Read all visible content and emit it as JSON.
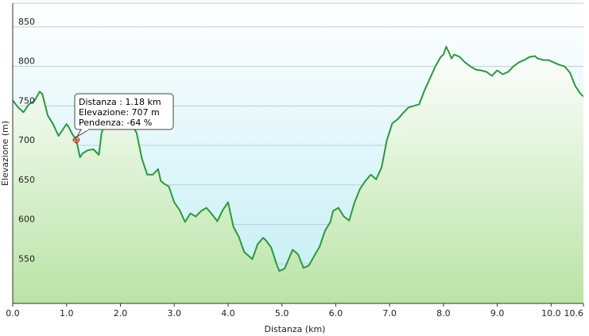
{
  "chart_data": {
    "type": "area",
    "title": "",
    "xlabel": "Distanza  (km)",
    "ylabel": "Elevazione (m)",
    "xlim": [
      0,
      10.6
    ],
    "ylim": [
      500,
      880
    ],
    "x_ticks": [
      0.0,
      1.0,
      2.0,
      3.0,
      4.0,
      5.0,
      6.0,
      7.0,
      8.0,
      9.0,
      10.0,
      10.6
    ],
    "x_tick_labels": [
      "0.0",
      "1.0",
      "2.0",
      "3.0",
      "4.0",
      "5.0",
      "6.0",
      "7.0",
      "8.0",
      "9.0",
      "10.0",
      "10.6"
    ],
    "y_ticks": [
      550,
      600,
      650,
      700,
      750,
      800,
      850
    ],
    "y_tick_labels": [
      "550",
      "600",
      "650",
      "700",
      "750",
      "800",
      "850"
    ],
    "grid": "horizontal",
    "colors": {
      "line": "#2a9a3c",
      "fill_top": "#ffffff",
      "fill_bottom": "#b9e3a0",
      "bg_top": "#ffffff",
      "bg_bottom": "#c2eef5",
      "grid": "#b9cfd8",
      "marker": "#d2302a"
    },
    "x": [
      0.0,
      0.1,
      0.2,
      0.3,
      0.4,
      0.5,
      0.55,
      0.65,
      0.75,
      0.85,
      0.9,
      1.0,
      1.05,
      1.1,
      1.18,
      1.25,
      1.3,
      1.4,
      1.5,
      1.6,
      1.65,
      1.75,
      1.85,
      1.9,
      2.0,
      2.1,
      2.15,
      2.25,
      2.3,
      2.4,
      2.5,
      2.6,
      2.7,
      2.75,
      2.8,
      2.9,
      3.0,
      3.1,
      3.2,
      3.3,
      3.4,
      3.5,
      3.6,
      3.7,
      3.8,
      3.9,
      4.0,
      4.1,
      4.2,
      4.3,
      4.35,
      4.45,
      4.55,
      4.65,
      4.7,
      4.8,
      4.9,
      4.95,
      5.05,
      5.15,
      5.2,
      5.3,
      5.4,
      5.5,
      5.6,
      5.7,
      5.8,
      5.9,
      5.95,
      6.05,
      6.15,
      6.25,
      6.35,
      6.45,
      6.55,
      6.65,
      6.75,
      6.85,
      6.95,
      7.05,
      7.15,
      7.25,
      7.35,
      7.45,
      7.55,
      7.65,
      7.75,
      7.85,
      7.95,
      8.0,
      8.05,
      8.1,
      8.15,
      8.2,
      8.3,
      8.4,
      8.5,
      8.6,
      8.7,
      8.8,
      8.9,
      9.0,
      9.1,
      9.2,
      9.3,
      9.4,
      9.5,
      9.6,
      9.7,
      9.75,
      9.85,
      9.95,
      10.05,
      10.15,
      10.25,
      10.35,
      10.45,
      10.55,
      10.6
    ],
    "y": [
      757,
      748,
      742,
      752,
      756,
      768,
      765,
      738,
      727,
      712,
      717,
      727,
      722,
      715,
      707,
      685,
      690,
      694,
      695,
      688,
      716,
      733,
      738,
      745,
      750,
      734,
      730,
      722,
      716,
      683,
      663,
      663,
      670,
      655,
      652,
      648,
      628,
      618,
      603,
      614,
      610,
      617,
      621,
      613,
      604,
      618,
      628,
      597,
      584,
      565,
      562,
      556,
      575,
      583,
      580,
      571,
      550,
      541,
      544,
      560,
      568,
      562,
      545,
      548,
      560,
      572,
      592,
      603,
      617,
      621,
      610,
      605,
      628,
      645,
      655,
      663,
      657,
      672,
      707,
      728,
      733,
      741,
      748,
      750,
      752,
      770,
      785,
      800,
      812,
      815,
      825,
      818,
      810,
      815,
      812,
      805,
      800,
      796,
      795,
      793,
      788,
      795,
      790,
      793,
      800,
      805,
      808,
      812,
      813,
      810,
      808,
      808,
      805,
      802,
      800,
      792,
      775,
      765,
      762
    ]
  },
  "tooltip": {
    "distance_line": "Distanza : 1.18 km",
    "elevation_line": "Elevazione: 707 m",
    "slope_line": "Pendenza: -64 %",
    "x": 1.18,
    "y": 707
  }
}
